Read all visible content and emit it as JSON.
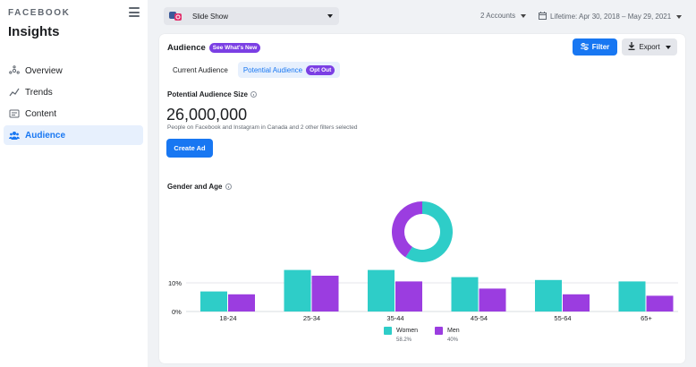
{
  "sidebar": {
    "brand": "FACEBOOK",
    "title": "Insights",
    "items": [
      {
        "label": "Overview",
        "icon": "overview-icon",
        "active": false
      },
      {
        "label": "Trends",
        "icon": "trends-icon",
        "active": false
      },
      {
        "label": "Content",
        "icon": "content-icon",
        "active": false
      },
      {
        "label": "Audience",
        "icon": "audience-icon",
        "active": true
      }
    ]
  },
  "topbar": {
    "page_name": "Slide Show",
    "accounts": "2 Accounts",
    "date_range": "Lifetime: Apr 30, 2018 – May 29, 2021"
  },
  "card": {
    "title": "Audience",
    "title_badge": "See What's New",
    "filter_label": "Filter",
    "export_label": "Export",
    "tabs": [
      {
        "label": "Current Audience",
        "active": false
      },
      {
        "label": "Potential Audience",
        "active": true,
        "badge": "Opt Out"
      }
    ],
    "size_label": "Potential Audience Size",
    "size_value": "26,000,000",
    "size_sub": "People on Facebook and Instagram in Canada and 2 other filters selected",
    "create_button": "Create Ad",
    "chart_label": "Gender and Age"
  },
  "colors": {
    "accent": "#1877f2",
    "women": "#2ecdc8",
    "men": "#9b3de0",
    "badge": "#7b3fe4"
  },
  "chart_data": {
    "type": "bar",
    "categories": [
      "18-24",
      "25-34",
      "35-44",
      "45-54",
      "55-64",
      "65+"
    ],
    "series": [
      {
        "name": "Women",
        "values": [
          7,
          14.5,
          14.5,
          12,
          11,
          10.5
        ]
      },
      {
        "name": "Men",
        "values": [
          6,
          12.5,
          10.5,
          8,
          6,
          5.5
        ]
      }
    ],
    "yticks": [
      "0%",
      "10%"
    ],
    "ylim": [
      0,
      15
    ],
    "donut": {
      "type": "pie",
      "slices": [
        {
          "name": "Women",
          "value": 58.2
        },
        {
          "name": "Men",
          "value": 40
        }
      ]
    },
    "legend": [
      {
        "name": "Women",
        "pct": "58.2%"
      },
      {
        "name": "Men",
        "pct": "40%"
      }
    ]
  }
}
